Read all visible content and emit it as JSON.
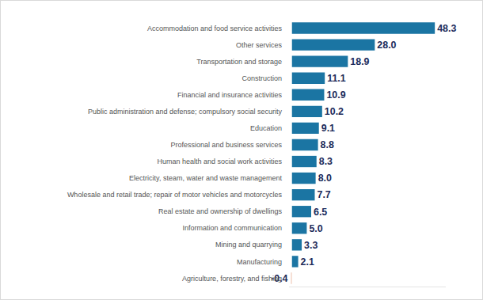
{
  "chart_data": {
    "type": "bar",
    "orientation": "horizontal",
    "categories": [
      "Accommodation and food service activities",
      "Other services",
      "Transportation and storage",
      "Construction",
      "Financial and insurance activities",
      "Public administration and defense; compulsory social security",
      "Education",
      "Professional and business services",
      "Human health and social work activities",
      "Electricity, steam, water and waste management",
      "Wholesale and retail trade; repair of motor vehicles and motorcycles",
      "Real estate and ownership of dwellings",
      "Information and communication",
      "Mining and quarrying",
      "Manufacturing",
      "Agriculture, forestry, and fishing"
    ],
    "values": [
      48.3,
      28.0,
      18.9,
      11.1,
      10.9,
      10.2,
      9.1,
      8.8,
      8.3,
      8.0,
      7.7,
      6.5,
      5.0,
      3.3,
      2.1,
      -0.4
    ],
    "value_labels": [
      "48.3",
      "28.0",
      "18.9",
      "11.1",
      "10.9",
      "10.2",
      "9.1",
      "8.8",
      "8.3",
      "8.0",
      "7.7",
      "6.5",
      "5.0",
      "3.3",
      "2.1",
      "-0.4"
    ],
    "colors": [
      "#1b75a3",
      "#1b75a3",
      "#1b75a3",
      "#1b75a3",
      "#1b75a3",
      "#1b75a3",
      "#1b75a3",
      "#1b75a3",
      "#1b75a3",
      "#1b75a3",
      "#1b75a3",
      "#1b75a3",
      "#1b75a3",
      "#1b75a3",
      "#1b75a3",
      "#f3d5c8"
    ],
    "xlim": [
      -1,
      52
    ],
    "xticks": [],
    "data_labels": true,
    "tick_labels": "y",
    "grid": false
  }
}
